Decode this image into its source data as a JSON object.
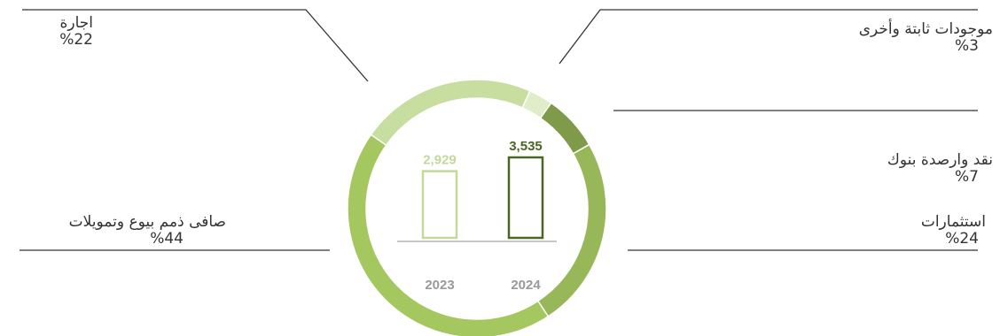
{
  "chart_data": {
    "type": "pie",
    "donut": true,
    "segments": [
      {
        "name": "اجارة",
        "percent_label": "%22",
        "value": 22,
        "color": "#c7dea0"
      },
      {
        "name": "موجودات ثابتة وأخرى",
        "percent_label": "%3",
        "value": 3,
        "color": "#e1edc9"
      },
      {
        "name": "نقد وارصدة بنوك",
        "percent_label": "%7",
        "value": 7,
        "color": "#7f9a48"
      },
      {
        "name": "استثمارات",
        "percent_label": "%24",
        "value": 24,
        "color": "#98b758"
      },
      {
        "name": "صافى ذمم بيوع وتمويلات",
        "percent_label": "%44",
        "value": 44,
        "color": "#a5c760"
      }
    ],
    "inner_bars": {
      "categories": [
        "2023",
        "2024"
      ],
      "values": [
        2929,
        3535
      ],
      "value_labels": [
        "2,929",
        "3,535"
      ],
      "colors": [
        "#c2d99a",
        "#4a6624"
      ]
    }
  }
}
